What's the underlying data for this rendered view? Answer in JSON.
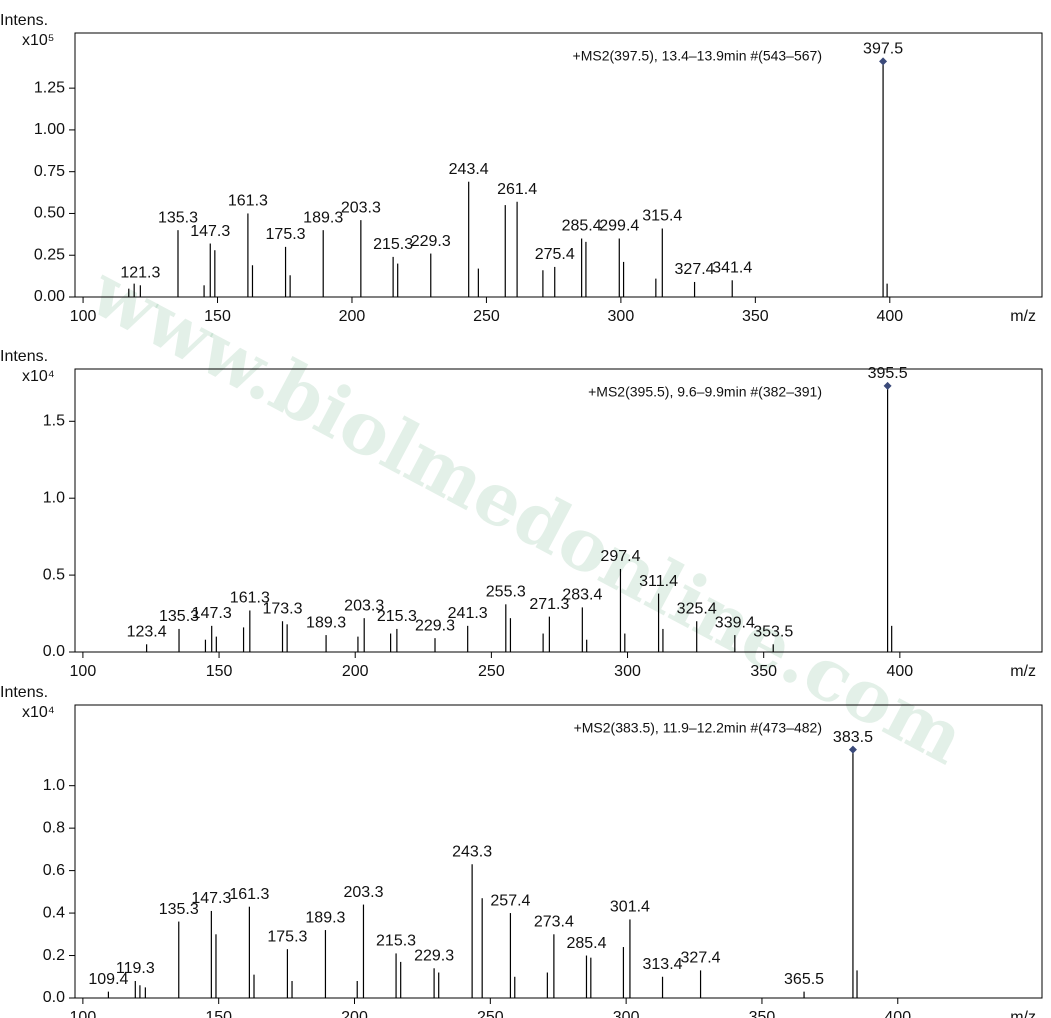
{
  "watermark": "www.biolmedonline.com",
  "chart_data": [
    {
      "type": "stem",
      "ylabel": "Intens.",
      "y_scale": "x10⁵",
      "xlabel": "m/z",
      "annotation": "+MS2(397.5), 13.4–13.9min #(543–567)",
      "color": "#000000",
      "marker_color": "#3b4a7a",
      "xlim": [
        97,
        456.6
      ],
      "ylim": [
        0,
        1.58
      ],
      "xticks": [
        100,
        150,
        200,
        250,
        300,
        350,
        400
      ],
      "yticks": [
        {
          "value": 0,
          "label": "0.00"
        },
        {
          "value": 0.25,
          "label": "0.25"
        },
        {
          "value": 0.5,
          "label": "0.50"
        },
        {
          "value": 0.75,
          "label": "0.75"
        },
        {
          "value": 1,
          "label": "1.00"
        },
        {
          "value": 1.25,
          "label": "1.25"
        }
      ],
      "peaks": {
        "x": [
          121.3,
          135.3,
          147.3,
          161.3,
          175.3,
          189.3,
          203.3,
          215.3,
          229.3,
          243.4,
          261.4,
          275.4,
          285.4,
          299.4,
          315.4,
          327.4,
          341.4,
          397.5
        ],
        "values": [
          0.07,
          0.4,
          0.32,
          0.5,
          0.3,
          0.4,
          0.46,
          0.24,
          0.26,
          0.69,
          0.57,
          0.18,
          0.35,
          0.35,
          0.41,
          0.09,
          0.1,
          1.41
        ]
      },
      "minor_peaks": {
        "x": [
          117,
          119,
          145,
          149,
          163,
          177,
          217,
          247,
          257,
          271,
          287,
          301,
          313,
          399
        ],
        "values": [
          0.05,
          0.08,
          0.07,
          0.28,
          0.19,
          0.13,
          0.2,
          0.17,
          0.55,
          0.16,
          0.33,
          0.21,
          0.11,
          0.08
        ]
      }
    },
    {
      "type": "stem",
      "ylabel": "Intens.",
      "y_scale": "x10⁴",
      "xlabel": "m/z",
      "annotation": "+MS2(395.5), 9.6–9.9min #(382–391)",
      "color": "#000000",
      "marker_color": "#3b4a7a",
      "xlim": [
        97.1,
        452.2
      ],
      "ylim": [
        0,
        1.84
      ],
      "xticks": [
        100,
        150,
        200,
        250,
        300,
        350,
        400
      ],
      "yticks": [
        {
          "value": 0,
          "label": "0.0"
        },
        0.5,
        {
          "value": 1,
          "label": "1.0"
        },
        1.5
      ],
      "peaks": {
        "x": [
          123.4,
          135.3,
          147.3,
          161.3,
          173.3,
          189.3,
          203.3,
          215.3,
          229.3,
          241.3,
          255.3,
          271.3,
          283.4,
          297.4,
          311.4,
          325.4,
          339.4,
          353.5,
          395.5
        ],
        "values": [
          0.05,
          0.15,
          0.17,
          0.27,
          0.2,
          0.11,
          0.22,
          0.15,
          0.09,
          0.17,
          0.31,
          0.23,
          0.29,
          0.54,
          0.38,
          0.2,
          0.11,
          0.05,
          1.73
        ]
      },
      "minor_peaks": {
        "x": [
          145,
          149,
          159,
          175,
          201,
          213,
          257,
          269,
          285,
          299,
          313,
          397
        ],
        "values": [
          0.08,
          0.1,
          0.16,
          0.18,
          0.1,
          0.12,
          0.22,
          0.12,
          0.08,
          0.12,
          0.15,
          0.17
        ]
      }
    },
    {
      "type": "stem",
      "ylabel": "Intens.",
      "y_scale": "x10⁴",
      "xlabel": "m/z",
      "annotation": "+MS2(383.5), 11.9–12.2min #(473–482)",
      "color": "#000000",
      "marker_color": "#3b4a7a",
      "xlim": [
        97.1,
        453.1
      ],
      "ylim": [
        0,
        1.38
      ],
      "xticks": [
        100,
        150,
        200,
        250,
        300,
        350,
        400
      ],
      "yticks": [
        {
          "value": 0,
          "label": "0.0"
        },
        0.2,
        0.4,
        0.6,
        0.8,
        {
          "value": 1,
          "label": "1.0"
        }
      ],
      "peaks": {
        "x": [
          109.4,
          119.3,
          135.3,
          147.3,
          161.3,
          175.3,
          189.3,
          203.3,
          215.3,
          229.3,
          243.3,
          257.4,
          273.4,
          285.4,
          301.4,
          313.4,
          327.4,
          365.5,
          383.5
        ],
        "values": [
          0.03,
          0.08,
          0.36,
          0.41,
          0.43,
          0.23,
          0.32,
          0.44,
          0.21,
          0.14,
          0.63,
          0.4,
          0.3,
          0.2,
          0.37,
          0.1,
          0.13,
          0.03,
          1.17
        ]
      },
      "minor_peaks": {
        "x": [
          121,
          123,
          149,
          163,
          177,
          201,
          217,
          231,
          247,
          259,
          271,
          287,
          299,
          385
        ],
        "values": [
          0.06,
          0.05,
          0.3,
          0.11,
          0.08,
          0.08,
          0.17,
          0.12,
          0.47,
          0.1,
          0.12,
          0.19,
          0.24,
          0.13
        ]
      }
    }
  ]
}
